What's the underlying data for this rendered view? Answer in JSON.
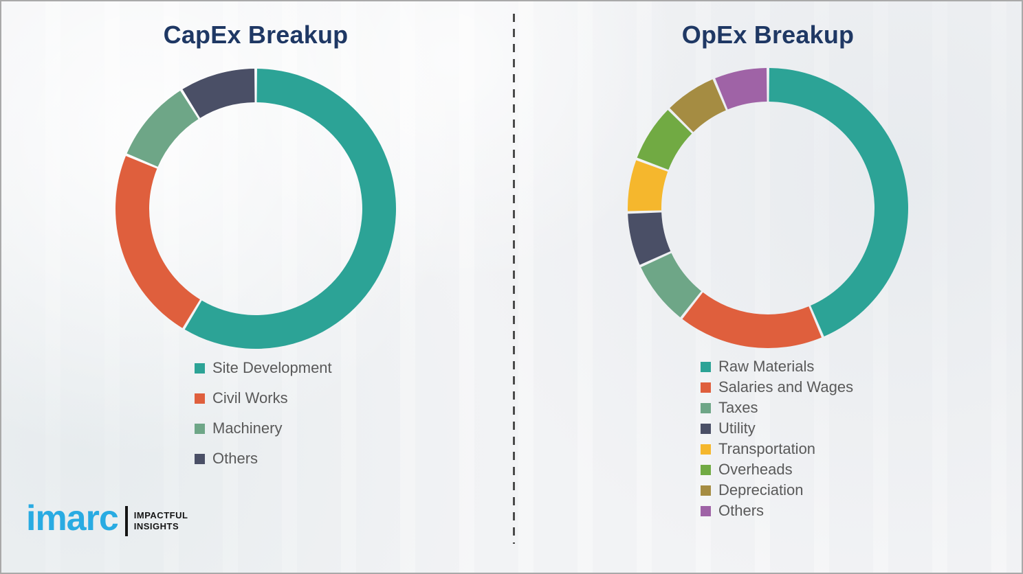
{
  "page": {
    "background": "#f2f3f5",
    "border_color": "#a9a9a9",
    "title_color": "#1f3864",
    "legend_text_color": "#595959"
  },
  "chart_data": [
    {
      "type": "pie",
      "subtype": "donut",
      "title": "CapEx Breakup",
      "start_angle_deg": 0,
      "direction": "clockwise",
      "legend_position": "below-left",
      "slices": [
        {
          "label": "Site Development",
          "value": 58.6,
          "color": "#2ca396"
        },
        {
          "label": "Civil Works",
          "value": 22.7,
          "color": "#df5f3d"
        },
        {
          "label": "Machinery",
          "value": 9.8,
          "color": "#6ea687"
        },
        {
          "label": "Others",
          "value": 8.9,
          "color": "#4a4f66"
        }
      ]
    },
    {
      "type": "pie",
      "subtype": "donut",
      "title": "OpEx Breakup",
      "start_angle_deg": 0,
      "direction": "clockwise",
      "legend_position": "below-left",
      "slices": [
        {
          "label": "Raw Materials",
          "value": 43.6,
          "color": "#2ca396"
        },
        {
          "label": "Salaries and Wages",
          "value": 17.0,
          "color": "#df5f3d"
        },
        {
          "label": "Taxes",
          "value": 7.6,
          "color": "#6ea687"
        },
        {
          "label": "Utility",
          "value": 6.3,
          "color": "#4a4f66"
        },
        {
          "label": "Transportation",
          "value": 6.2,
          "color": "#f5b72d"
        },
        {
          "label": "Overheads",
          "value": 6.8,
          "color": "#71aa43"
        },
        {
          "label": "Depreciation",
          "value": 6.2,
          "color": "#a58c42"
        },
        {
          "label": "Others",
          "value": 6.3,
          "color": "#9f63a6"
        }
      ]
    }
  ],
  "divider": {
    "style": "dashed-vertical",
    "color": "#4a4a4a"
  },
  "logo": {
    "brand": "imarc",
    "brand_color": "#29abe2",
    "tagline_line1": "IMPACTFUL",
    "tagline_line2": "INSIGHTS"
  }
}
